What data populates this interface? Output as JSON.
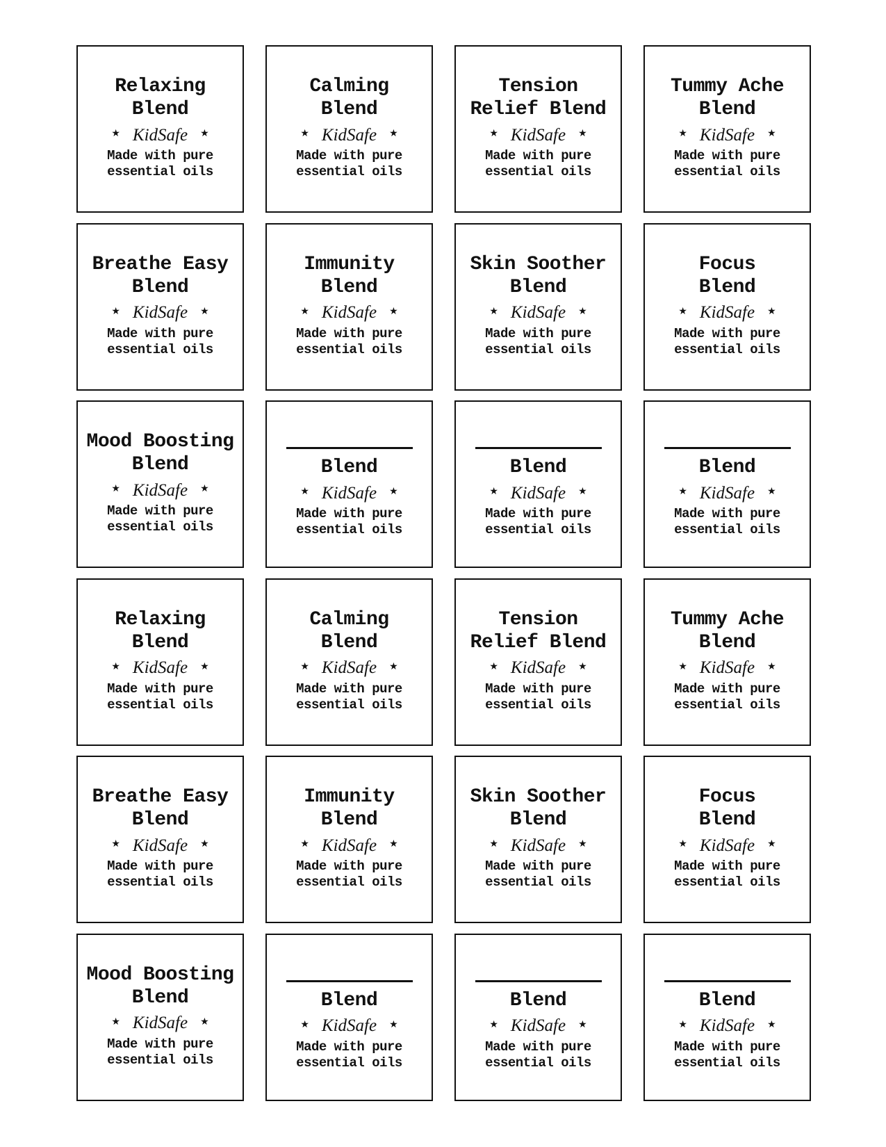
{
  "sheet": {
    "rows": 6,
    "columns": 4,
    "background_color": "#ffffff",
    "border_color": "#111111",
    "text_color": "#111111"
  },
  "common": {
    "kidsafe_label": "KidSafe",
    "star_icon": "★",
    "tagline": [
      "Made with pure",
      "essential oils"
    ]
  },
  "labels": [
    {
      "title_line1": "Relaxing",
      "title_line2": "Blend",
      "blank": false
    },
    {
      "title_line1": "Calming",
      "title_line2": "Blend",
      "blank": false
    },
    {
      "title_line1": "Tension",
      "title_line2": "Relief Blend",
      "blank": false
    },
    {
      "title_line1": "Tummy Ache",
      "title_line2": "Blend",
      "blank": false
    },
    {
      "title_line1": "Breathe Easy",
      "title_line2": "Blend",
      "blank": false
    },
    {
      "title_line1": "Immunity",
      "title_line2": "Blend",
      "blank": false
    },
    {
      "title_line1": "Skin Soother",
      "title_line2": "Blend",
      "blank": false
    },
    {
      "title_line1": "Focus",
      "title_line2": "Blend",
      "blank": false
    },
    {
      "title_line1": "Mood Boosting",
      "title_line2": "Blend",
      "blank": false
    },
    {
      "title_line1": "",
      "title_line2": "Blend",
      "blank": true
    },
    {
      "title_line1": "",
      "title_line2": "Blend",
      "blank": true
    },
    {
      "title_line1": "",
      "title_line2": "Blend",
      "blank": true
    },
    {
      "title_line1": "Relaxing",
      "title_line2": "Blend",
      "blank": false
    },
    {
      "title_line1": "Calming",
      "title_line2": "Blend",
      "blank": false
    },
    {
      "title_line1": "Tension",
      "title_line2": "Relief Blend",
      "blank": false
    },
    {
      "title_line1": "Tummy Ache",
      "title_line2": "Blend",
      "blank": false
    },
    {
      "title_line1": "Breathe Easy",
      "title_line2": "Blend",
      "blank": false
    },
    {
      "title_line1": "Immunity",
      "title_line2": "Blend",
      "blank": false
    },
    {
      "title_line1": "Skin Soother",
      "title_line2": "Blend",
      "blank": false
    },
    {
      "title_line1": "Focus",
      "title_line2": "Blend",
      "blank": false
    },
    {
      "title_line1": "Mood Boosting",
      "title_line2": "Blend",
      "blank": false
    },
    {
      "title_line1": "",
      "title_line2": "Blend",
      "blank": true
    },
    {
      "title_line1": "",
      "title_line2": "Blend",
      "blank": true
    },
    {
      "title_line1": "",
      "title_line2": "Blend",
      "blank": true
    }
  ]
}
